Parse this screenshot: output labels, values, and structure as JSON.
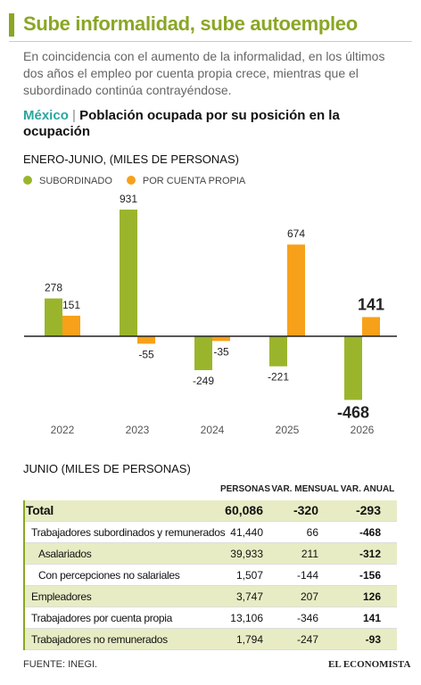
{
  "header": {
    "title": "Sube informalidad, sube autoempleo",
    "intro": "En coincidencia con el aumento de la informalidad, en los últimos dos años el empleo por cuenta propia crece, mientras que el subordinado continúa contrayéndose."
  },
  "chart_data": {
    "type": "bar",
    "region": "México",
    "separator": "|",
    "title": "Población ocupada por su posición en la ocupación",
    "subtitle": "ENERO-JUNIO, (MILES DE PERSONAS)",
    "categories": [
      "2022",
      "2023",
      "2024",
      "2025",
      "2026"
    ],
    "series": [
      {
        "name": "SUBORDINADO",
        "color": "#9ab52c",
        "values": [
          278,
          931,
          -249,
          -221,
          -468
        ]
      },
      {
        "name": "POR CUENTA PROPIA",
        "color": "#f7a11a",
        "values": [
          151,
          -55,
          -35,
          674,
          141
        ]
      }
    ]
  },
  "table": {
    "title": "JUNIO (MILES DE PERSONAS)",
    "columns": [
      "PERSONAS",
      "VAR. MENSUAL",
      "VAR. ANUAL"
    ],
    "rows": [
      [
        "Total",
        "60,086",
        "-320",
        "-293"
      ],
      [
        "Trabajadores subordinados y remunerados",
        "41,440",
        "66",
        "-468"
      ],
      [
        "Asalariados",
        "39,933",
        "211",
        "-312"
      ],
      [
        "Con percepciones no salariales",
        "1,507",
        "-144",
        "-156"
      ],
      [
        "Empleadores",
        "3,747",
        "207",
        "126"
      ],
      [
        "Trabajadores por cuenta propia",
        "13,106",
        "-346",
        "141"
      ],
      [
        "Trabajadores no remunerados",
        "1,794",
        "-247",
        "-93"
      ]
    ]
  },
  "footer": {
    "source": "FUENTE:  INEGI.",
    "brand": "EL ECONOMISTA"
  }
}
